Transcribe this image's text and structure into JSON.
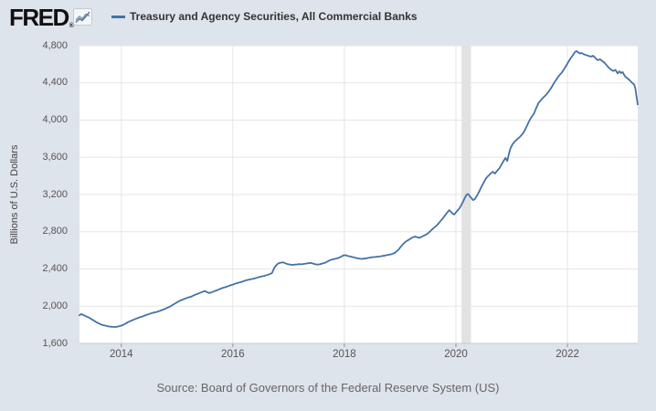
{
  "header": {
    "logo": "FRED",
    "registered_mark": "®",
    "legend_label": "Treasury and Agency Securities, All Commercial Banks"
  },
  "source_line": "Source: Board of Governors of the Federal Reserve System (US)",
  "colors": {
    "background": "#dee4eb",
    "plot_background": "#ffffff",
    "line": "#4572a7",
    "gridline": "#e6e6e6",
    "recession_band": "#e2e2e2",
    "axis_line": "#c6cacf",
    "tick_mark": "#8e959c",
    "icon_gray": "#8a9299",
    "icon_border": "#c5cad0",
    "icon_bg": "#f5f6f7"
  },
  "chart_data": {
    "type": "line",
    "title": "Treasury and Agency Securities, All Commercial Banks",
    "xlabel": "",
    "ylabel": "Billions of U.S. Dollars",
    "xlim": [
      2013.25,
      2023.26
    ],
    "ylim": [
      1600,
      4800
    ],
    "grid": "both",
    "legend_position": "top-left",
    "y_ticks": [
      {
        "v": 1600,
        "label": "1,600"
      },
      {
        "v": 2000,
        "label": "2,000"
      },
      {
        "v": 2400,
        "label": "2,400"
      },
      {
        "v": 2800,
        "label": "2,800"
      },
      {
        "v": 3200,
        "label": "3,200"
      },
      {
        "v": 3600,
        "label": "3,600"
      },
      {
        "v": 4000,
        "label": "4,000"
      },
      {
        "v": 4400,
        "label": "4,400"
      },
      {
        "v": 4800,
        "label": "4,800"
      }
    ],
    "x_ticks": [
      {
        "v": 2014,
        "label": "2014"
      },
      {
        "v": 2016,
        "label": "2016"
      },
      {
        "v": 2018,
        "label": "2018"
      },
      {
        "v": 2020,
        "label": "2020"
      },
      {
        "v": 2022,
        "label": "2022"
      }
    ],
    "recession_bands": [
      {
        "from": 2020.1,
        "to": 2020.27
      }
    ],
    "series": [
      {
        "name": "Treasury and Agency Securities, All Commercial Banks",
        "color": "#4572a7",
        "units": "Billions of U.S. Dollars",
        "points": [
          [
            2013.25,
            1902
          ],
          [
            2013.28,
            1915
          ],
          [
            2013.31,
            1908
          ],
          [
            2013.35,
            1896
          ],
          [
            2013.38,
            1888
          ],
          [
            2013.42,
            1878
          ],
          [
            2013.46,
            1862
          ],
          [
            2013.5,
            1848
          ],
          [
            2013.54,
            1833
          ],
          [
            2013.58,
            1820
          ],
          [
            2013.62,
            1808
          ],
          [
            2013.65,
            1800
          ],
          [
            2013.69,
            1793
          ],
          [
            2013.73,
            1788
          ],
          [
            2013.77,
            1783
          ],
          [
            2013.81,
            1780
          ],
          [
            2013.85,
            1778
          ],
          [
            2013.88,
            1777
          ],
          [
            2013.92,
            1779
          ],
          [
            2013.96,
            1784
          ],
          [
            2014.0,
            1791
          ],
          [
            2014.04,
            1801
          ],
          [
            2014.08,
            1814
          ],
          [
            2014.12,
            1829
          ],
          [
            2014.17,
            1842
          ],
          [
            2014.21,
            1852
          ],
          [
            2014.25,
            1862
          ],
          [
            2014.29,
            1872
          ],
          [
            2014.33,
            1881
          ],
          [
            2014.38,
            1890
          ],
          [
            2014.42,
            1899
          ],
          [
            2014.46,
            1908
          ],
          [
            2014.5,
            1916
          ],
          [
            2014.54,
            1924
          ],
          [
            2014.58,
            1931
          ],
          [
            2014.63,
            1938
          ],
          [
            2014.67,
            1946
          ],
          [
            2014.71,
            1954
          ],
          [
            2014.75,
            1963
          ],
          [
            2014.79,
            1973
          ],
          [
            2014.83,
            1985
          ],
          [
            2014.88,
            1998
          ],
          [
            2014.92,
            2013
          ],
          [
            2014.96,
            2028
          ],
          [
            2015.0,
            2042
          ],
          [
            2015.04,
            2056
          ],
          [
            2015.08,
            2066
          ],
          [
            2015.13,
            2078
          ],
          [
            2015.17,
            2088
          ],
          [
            2015.21,
            2096
          ],
          [
            2015.25,
            2102
          ],
          [
            2015.29,
            2113
          ],
          [
            2015.33,
            2124
          ],
          [
            2015.38,
            2136
          ],
          [
            2015.42,
            2146
          ],
          [
            2015.46,
            2156
          ],
          [
            2015.5,
            2163
          ],
          [
            2015.54,
            2150
          ],
          [
            2015.58,
            2141
          ],
          [
            2015.63,
            2152
          ],
          [
            2015.67,
            2161
          ],
          [
            2015.71,
            2170
          ],
          [
            2015.75,
            2180
          ],
          [
            2015.79,
            2190
          ],
          [
            2015.83,
            2199
          ],
          [
            2015.88,
            2208
          ],
          [
            2015.92,
            2216
          ],
          [
            2015.96,
            2224
          ],
          [
            2016.0,
            2232
          ],
          [
            2016.04,
            2241
          ],
          [
            2016.08,
            2249
          ],
          [
            2016.13,
            2257
          ],
          [
            2016.17,
            2264
          ],
          [
            2016.21,
            2272
          ],
          [
            2016.25,
            2280
          ],
          [
            2016.29,
            2286
          ],
          [
            2016.33,
            2291
          ],
          [
            2016.38,
            2297
          ],
          [
            2016.42,
            2304
          ],
          [
            2016.46,
            2312
          ],
          [
            2016.5,
            2318
          ],
          [
            2016.54,
            2322
          ],
          [
            2016.58,
            2328
          ],
          [
            2016.63,
            2338
          ],
          [
            2016.67,
            2348
          ],
          [
            2016.7,
            2355
          ],
          [
            2016.74,
            2408
          ],
          [
            2016.78,
            2442
          ],
          [
            2016.82,
            2462
          ],
          [
            2016.86,
            2468
          ],
          [
            2016.9,
            2472
          ],
          [
            2016.94,
            2462
          ],
          [
            2016.98,
            2452
          ],
          [
            2017.02,
            2448
          ],
          [
            2017.06,
            2444
          ],
          [
            2017.1,
            2446
          ],
          [
            2017.15,
            2449
          ],
          [
            2017.19,
            2452
          ],
          [
            2017.23,
            2450
          ],
          [
            2017.27,
            2454
          ],
          [
            2017.31,
            2458
          ],
          [
            2017.35,
            2462
          ],
          [
            2017.4,
            2465
          ],
          [
            2017.44,
            2458
          ],
          [
            2017.48,
            2450
          ],
          [
            2017.52,
            2447
          ],
          [
            2017.56,
            2450
          ],
          [
            2017.6,
            2458
          ],
          [
            2017.65,
            2466
          ],
          [
            2017.69,
            2478
          ],
          [
            2017.73,
            2492
          ],
          [
            2017.77,
            2500
          ],
          [
            2017.81,
            2506
          ],
          [
            2017.85,
            2512
          ],
          [
            2017.9,
            2520
          ],
          [
            2017.94,
            2532
          ],
          [
            2017.98,
            2545
          ],
          [
            2018.02,
            2548
          ],
          [
            2018.06,
            2540
          ],
          [
            2018.1,
            2535
          ],
          [
            2018.15,
            2528
          ],
          [
            2018.19,
            2522
          ],
          [
            2018.23,
            2516
          ],
          [
            2018.27,
            2512
          ],
          [
            2018.31,
            2508
          ],
          [
            2018.35,
            2511
          ],
          [
            2018.4,
            2515
          ],
          [
            2018.44,
            2520
          ],
          [
            2018.48,
            2525
          ],
          [
            2018.52,
            2528
          ],
          [
            2018.56,
            2530
          ],
          [
            2018.6,
            2533
          ],
          [
            2018.65,
            2536
          ],
          [
            2018.69,
            2540
          ],
          [
            2018.73,
            2544
          ],
          [
            2018.77,
            2549
          ],
          [
            2018.81,
            2554
          ],
          [
            2018.85,
            2560
          ],
          [
            2018.9,
            2572
          ],
          [
            2018.94,
            2590
          ],
          [
            2018.98,
            2615
          ],
          [
            2019.02,
            2645
          ],
          [
            2019.06,
            2672
          ],
          [
            2019.1,
            2694
          ],
          [
            2019.15,
            2712
          ],
          [
            2019.19,
            2728
          ],
          [
            2019.23,
            2742
          ],
          [
            2019.27,
            2748
          ],
          [
            2019.31,
            2740
          ],
          [
            2019.35,
            2736
          ],
          [
            2019.4,
            2750
          ],
          [
            2019.44,
            2762
          ],
          [
            2019.48,
            2775
          ],
          [
            2019.52,
            2795
          ],
          [
            2019.56,
            2818
          ],
          [
            2019.6,
            2840
          ],
          [
            2019.65,
            2864
          ],
          [
            2019.69,
            2890
          ],
          [
            2019.73,
            2918
          ],
          [
            2019.77,
            2948
          ],
          [
            2019.81,
            2980
          ],
          [
            2019.85,
            3012
          ],
          [
            2019.88,
            3032
          ],
          [
            2019.91,
            3014
          ],
          [
            2019.94,
            2995
          ],
          [
            2019.97,
            2986
          ],
          [
            2020.0,
            3008
          ],
          [
            2020.03,
            3028
          ],
          [
            2020.06,
            3050
          ],
          [
            2020.1,
            3090
          ],
          [
            2020.13,
            3125
          ],
          [
            2020.16,
            3165
          ],
          [
            2020.19,
            3198
          ],
          [
            2020.22,
            3206
          ],
          [
            2020.25,
            3180
          ],
          [
            2020.28,
            3160
          ],
          [
            2020.31,
            3140
          ],
          [
            2020.34,
            3152
          ],
          [
            2020.38,
            3190
          ],
          [
            2020.42,
            3235
          ],
          [
            2020.46,
            3286
          ],
          [
            2020.5,
            3330
          ],
          [
            2020.54,
            3375
          ],
          [
            2020.58,
            3400
          ],
          [
            2020.62,
            3425
          ],
          [
            2020.66,
            3444
          ],
          [
            2020.7,
            3426
          ],
          [
            2020.74,
            3456
          ],
          [
            2020.78,
            3482
          ],
          [
            2020.82,
            3526
          ],
          [
            2020.86,
            3566
          ],
          [
            2020.89,
            3594
          ],
          [
            2020.92,
            3560
          ],
          [
            2020.95,
            3636
          ],
          [
            2020.98,
            3700
          ],
          [
            2021.02,
            3745
          ],
          [
            2021.06,
            3772
          ],
          [
            2021.1,
            3796
          ],
          [
            2021.14,
            3815
          ],
          [
            2021.19,
            3848
          ],
          [
            2021.23,
            3885
          ],
          [
            2021.27,
            3932
          ],
          [
            2021.31,
            3986
          ],
          [
            2021.35,
            4028
          ],
          [
            2021.4,
            4072
          ],
          [
            2021.44,
            4130
          ],
          [
            2021.48,
            4185
          ],
          [
            2021.52,
            4212
          ],
          [
            2021.56,
            4238
          ],
          [
            2021.6,
            4262
          ],
          [
            2021.65,
            4295
          ],
          [
            2021.69,
            4330
          ],
          [
            2021.73,
            4368
          ],
          [
            2021.77,
            4410
          ],
          [
            2021.81,
            4445
          ],
          [
            2021.85,
            4478
          ],
          [
            2021.9,
            4512
          ],
          [
            2021.94,
            4548
          ],
          [
            2021.98,
            4588
          ],
          [
            2022.02,
            4628
          ],
          [
            2022.06,
            4668
          ],
          [
            2022.1,
            4700
          ],
          [
            2022.13,
            4728
          ],
          [
            2022.16,
            4742
          ],
          [
            2022.19,
            4730
          ],
          [
            2022.22,
            4716
          ],
          [
            2022.25,
            4722
          ],
          [
            2022.29,
            4708
          ],
          [
            2022.33,
            4700
          ],
          [
            2022.38,
            4690
          ],
          [
            2022.42,
            4682
          ],
          [
            2022.46,
            4692
          ],
          [
            2022.5,
            4668
          ],
          [
            2022.54,
            4644
          ],
          [
            2022.58,
            4654
          ],
          [
            2022.62,
            4638
          ],
          [
            2022.66,
            4618
          ],
          [
            2022.7,
            4592
          ],
          [
            2022.74,
            4562
          ],
          [
            2022.78,
            4544
          ],
          [
            2022.82,
            4528
          ],
          [
            2022.86,
            4540
          ],
          [
            2022.9,
            4502
          ],
          [
            2022.93,
            4524
          ],
          [
            2022.96,
            4506
          ],
          [
            2022.99,
            4516
          ],
          [
            2023.03,
            4470
          ],
          [
            2023.07,
            4452
          ],
          [
            2023.11,
            4432
          ],
          [
            2023.15,
            4406
          ],
          [
            2023.18,
            4392
          ],
          [
            2023.2,
            4378
          ],
          [
            2023.22,
            4330
          ],
          [
            2023.24,
            4245
          ],
          [
            2023.26,
            4168
          ]
        ]
      }
    ]
  }
}
